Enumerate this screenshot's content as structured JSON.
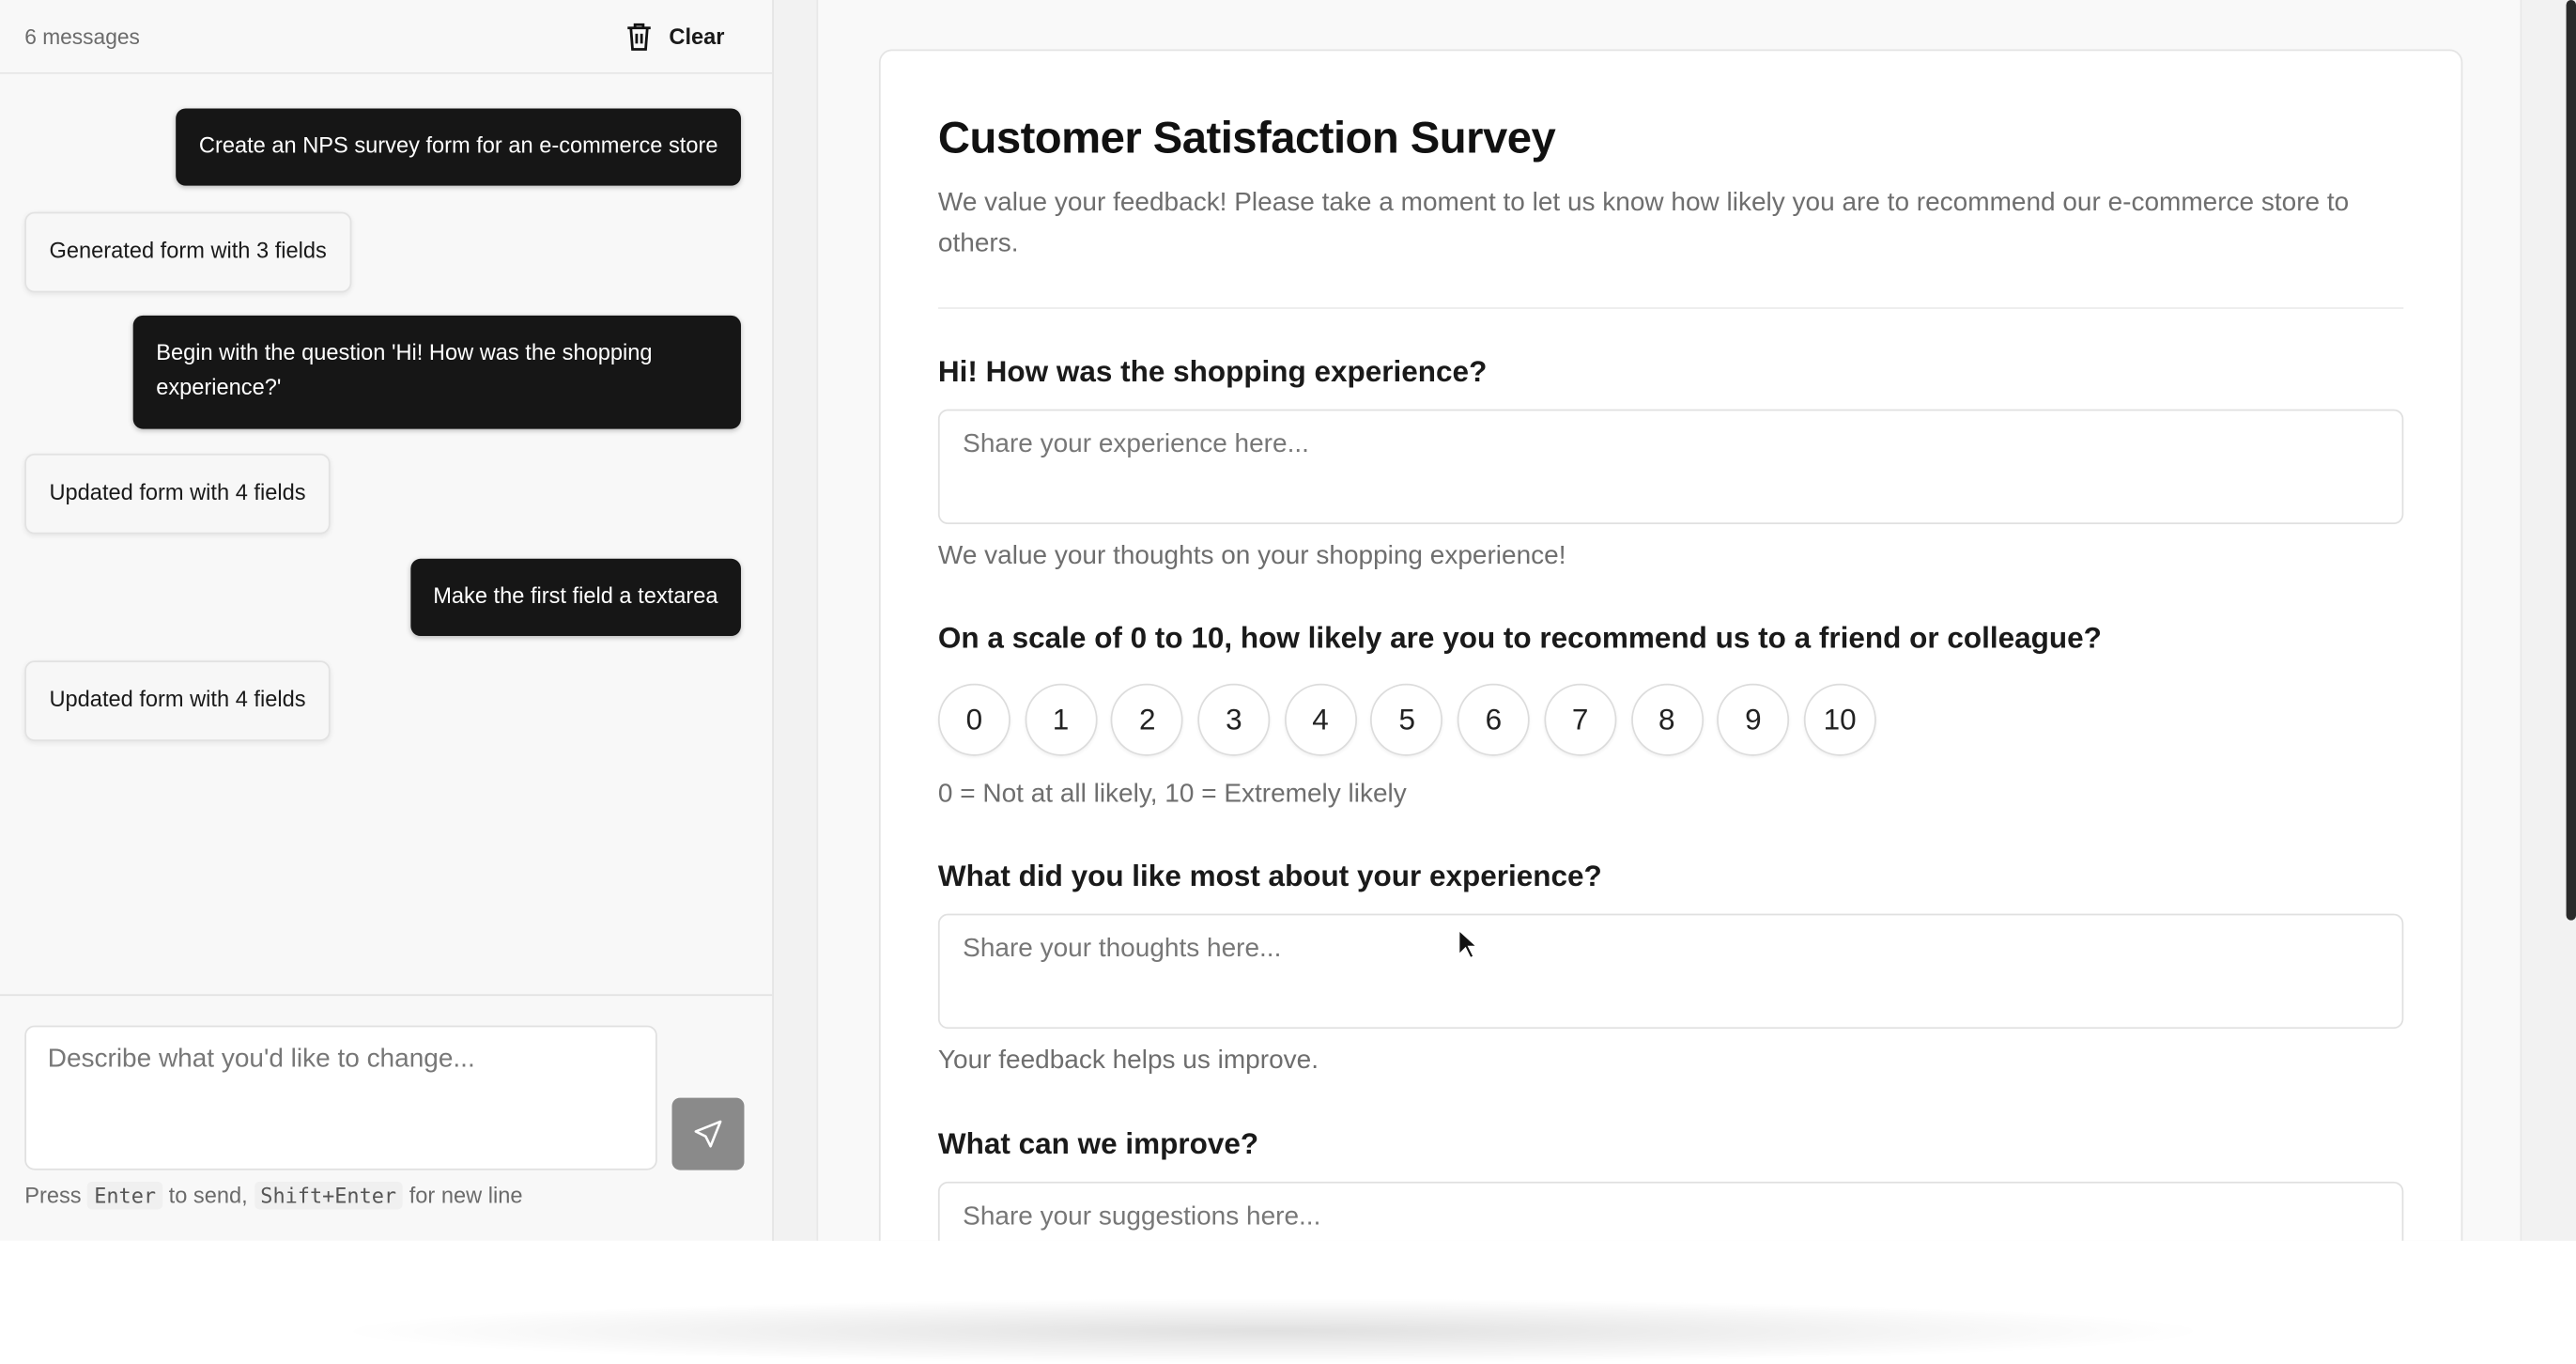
{
  "chat": {
    "message_count": "6 messages",
    "clear_label": "Clear",
    "messages": [
      {
        "role": "user",
        "text": "Create an NPS survey form for an e-commerce store"
      },
      {
        "role": "assistant",
        "text": "Generated form with 3 fields"
      },
      {
        "role": "user",
        "text": "Begin with the question 'Hi! How was the shopping experience?'"
      },
      {
        "role": "assistant",
        "text": "Updated form with 4 fields"
      },
      {
        "role": "user",
        "text": "Make the first field a textarea"
      },
      {
        "role": "assistant",
        "text": "Updated form with 4 fields"
      }
    ],
    "input_placeholder": "Describe what you'd like to change...",
    "hint": {
      "press": "Press",
      "key1": "Enter",
      "mid": "to send,",
      "key2": "Shift+Enter",
      "end": "for new line"
    }
  },
  "form": {
    "title": "Customer Satisfaction Survey",
    "description": "We value your feedback! Please take a moment to let us know how likely you are to recommend our e-commerce store to others.",
    "fields": [
      {
        "label": "Hi! How was the shopping experience?",
        "placeholder": "Share your experience here...",
        "help": "We value your thoughts on your shopping experience!"
      },
      {
        "label": "On a scale of 0 to 10, how likely are you to recommend us to a friend or colleague?",
        "scale": [
          "0",
          "1",
          "2",
          "3",
          "4",
          "5",
          "6",
          "7",
          "8",
          "9",
          "10"
        ],
        "help": "0 = Not at all likely, 10 = Extremely likely"
      },
      {
        "label": "What did you like most about your experience?",
        "placeholder": "Share your thoughts here...",
        "help": "Your feedback helps us improve."
      },
      {
        "label": "What can we improve?",
        "placeholder": "Share your suggestions here..."
      }
    ]
  }
}
